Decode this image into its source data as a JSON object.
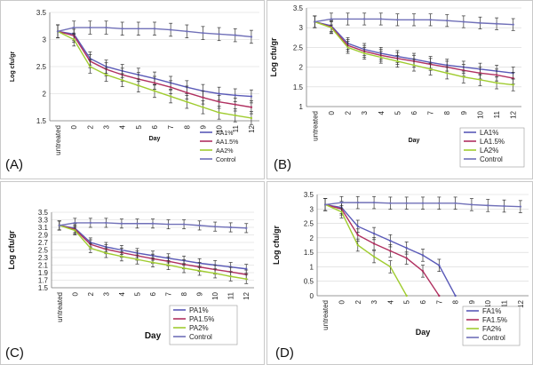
{
  "chart_data": [
    {
      "panel": "(A)",
      "type": "line",
      "title": "",
      "xlabel": "Day",
      "ylabel": "Log cfu/gr",
      "categories": [
        "untreated",
        "0",
        "2",
        "3",
        "4",
        "5",
        "6",
        "7",
        "8",
        "9",
        "10",
        "11",
        "12"
      ],
      "ylim": [
        1.5,
        3.5
      ],
      "yticks": [
        "1.5",
        "2",
        "2.5",
        "3",
        "3.5"
      ],
      "grid": true,
      "legend": "bottom-right",
      "series": [
        {
          "name": "AA1%",
          "color": "#5a5ab8",
          "values": [
            3.15,
            3.1,
            2.65,
            2.5,
            2.42,
            2.35,
            2.28,
            2.2,
            2.12,
            2.05,
            2.0,
            1.97,
            1.95
          ]
        },
        {
          "name": "AA1.5%",
          "color": "#b03060",
          "values": [
            3.15,
            3.07,
            2.6,
            2.45,
            2.35,
            2.27,
            2.2,
            2.12,
            2.02,
            1.93,
            1.85,
            1.8,
            1.75
          ]
        },
        {
          "name": "AA2%",
          "color": "#a0cc30",
          "values": [
            3.15,
            3.0,
            2.5,
            2.35,
            2.25,
            2.15,
            2.05,
            1.95,
            1.85,
            1.75,
            1.65,
            1.6,
            1.55
          ]
        },
        {
          "name": "Control",
          "color": "#7070b8",
          "values": [
            3.15,
            3.22,
            3.22,
            3.22,
            3.2,
            3.2,
            3.2,
            3.18,
            3.15,
            3.12,
            3.1,
            3.08,
            3.05
          ]
        }
      ]
    },
    {
      "panel": "(B)",
      "type": "line",
      "title": "",
      "xlabel": "Day",
      "ylabel": "Log cfu/gr",
      "categories": [
        "untreated",
        "0",
        "2",
        "3",
        "4",
        "5",
        "6",
        "7",
        "8",
        "9",
        "10",
        "11",
        "12"
      ],
      "ylim": [
        1.0,
        3.5
      ],
      "yticks": [
        "1",
        "1.5",
        "2",
        "2.5",
        "3",
        "3.5"
      ],
      "grid": true,
      "legend": "bottom-left",
      "series": [
        {
          "name": "LA1%",
          "color": "#5a5ab8",
          "values": [
            3.15,
            3.05,
            2.6,
            2.45,
            2.35,
            2.27,
            2.2,
            2.12,
            2.05,
            2.0,
            1.95,
            1.9,
            1.85
          ]
        },
        {
          "name": "LA1.5%",
          "color": "#b03060",
          "values": [
            3.15,
            3.02,
            2.55,
            2.4,
            2.3,
            2.22,
            2.15,
            2.07,
            2.0,
            1.92,
            1.85,
            1.8,
            1.72
          ]
        },
        {
          "name": "LA2%",
          "color": "#a0cc30",
          "values": [
            3.15,
            3.0,
            2.5,
            2.35,
            2.25,
            2.15,
            2.05,
            1.95,
            1.85,
            1.75,
            1.68,
            1.6,
            1.55
          ]
        },
        {
          "name": "Control",
          "color": "#7070b8",
          "values": [
            3.15,
            3.22,
            3.22,
            3.22,
            3.22,
            3.2,
            3.2,
            3.2,
            3.18,
            3.15,
            3.12,
            3.1,
            3.08
          ]
        }
      ]
    },
    {
      "panel": "(C)",
      "type": "line",
      "title": "",
      "xlabel": "Day",
      "ylabel": "Log cfu/gr",
      "categories": [
        "untreated",
        "0",
        "2",
        "3",
        "4",
        "5",
        "6",
        "7",
        "8",
        "9",
        "10",
        "11",
        "12"
      ],
      "ylim": [
        1.5,
        3.5
      ],
      "yticks": [
        "1.5",
        "1.7",
        "1.9",
        "2.1",
        "2.3",
        "2.5",
        "2.7",
        "2.9",
        "3.1",
        "3.3",
        "3.5"
      ],
      "grid": true,
      "legend": "bottom-right",
      "series": [
        {
          "name": "PA1%",
          "color": "#5a5ab8",
          "values": [
            3.15,
            3.08,
            2.7,
            2.58,
            2.5,
            2.42,
            2.35,
            2.28,
            2.22,
            2.15,
            2.1,
            2.05,
            2.0
          ]
        },
        {
          "name": "PA1.5%",
          "color": "#b03060",
          "values": [
            3.15,
            3.05,
            2.65,
            2.52,
            2.43,
            2.35,
            2.27,
            2.2,
            2.12,
            2.05,
            1.98,
            1.92,
            1.85
          ]
        },
        {
          "name": "PA2%",
          "color": "#a0cc30",
          "values": [
            3.15,
            3.02,
            2.55,
            2.42,
            2.33,
            2.25,
            2.17,
            2.1,
            2.02,
            1.95,
            1.88,
            1.8,
            1.73
          ]
        },
        {
          "name": "Control",
          "color": "#7070b8",
          "values": [
            3.15,
            3.22,
            3.22,
            3.22,
            3.2,
            3.2,
            3.2,
            3.18,
            3.18,
            3.15,
            3.12,
            3.1,
            3.08
          ]
        }
      ]
    },
    {
      "panel": "(D)",
      "type": "line",
      "title": "",
      "xlabel": "Day",
      "ylabel": "Log cfu/gr",
      "categories": [
        "untreated",
        "0",
        "2",
        "3",
        "4",
        "5",
        "6",
        "7",
        "8",
        "9",
        "10",
        "11",
        "12"
      ],
      "ylim": [
        0,
        3.5
      ],
      "yticks": [
        "0",
        "0.5",
        "1",
        "1.5",
        "2",
        "2.5",
        "3",
        "3.5"
      ],
      "grid": true,
      "legend": "bottom-right",
      "series": [
        {
          "name": "FA1%",
          "color": "#5a5ab8",
          "values": [
            3.15,
            3.05,
            2.4,
            2.15,
            1.9,
            1.65,
            1.4,
            1.05,
            0,
            null,
            null,
            null,
            null
          ]
        },
        {
          "name": "FA1.5%",
          "color": "#b03060",
          "values": [
            3.15,
            3.0,
            2.1,
            1.8,
            1.55,
            1.3,
            0.85,
            0,
            null,
            null,
            null,
            null,
            null
          ]
        },
        {
          "name": "FA2%",
          "color": "#a0cc30",
          "values": [
            3.15,
            2.9,
            1.75,
            1.35,
            1.0,
            0,
            null,
            null,
            null,
            null,
            null,
            null,
            null
          ]
        },
        {
          "name": "Control",
          "color": "#7070b8",
          "values": [
            3.15,
            3.22,
            3.22,
            3.22,
            3.2,
            3.2,
            3.2,
            3.2,
            3.2,
            3.15,
            3.12,
            3.1,
            3.08
          ]
        }
      ]
    }
  ]
}
